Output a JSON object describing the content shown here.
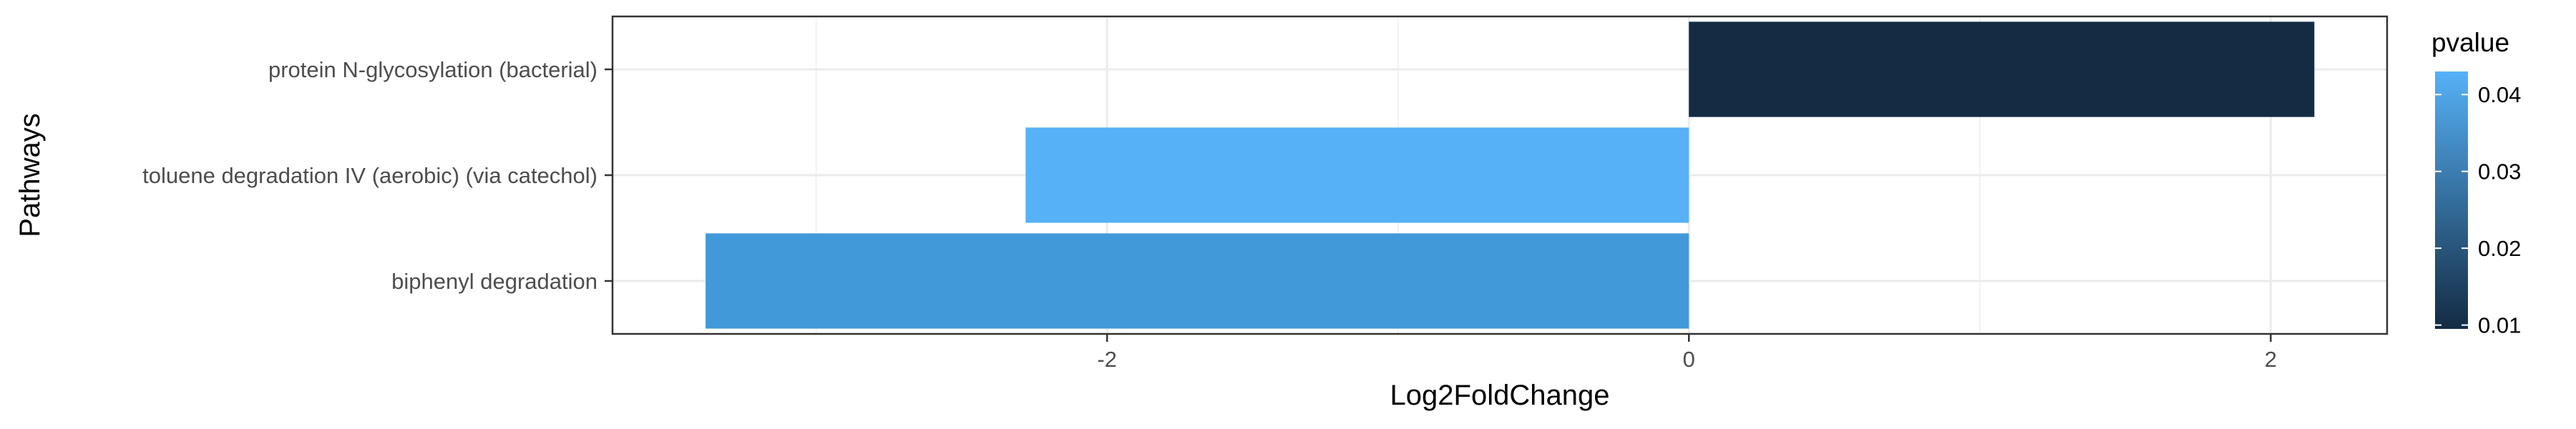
{
  "chart_data": {
    "type": "bar",
    "orientation": "horizontal",
    "xlabel": "Log2FoldChange",
    "ylabel": "Pathways",
    "xlim": [
      -3.7,
      2.4
    ],
    "x_ticks": [
      {
        "value": -2,
        "label": "-2"
      },
      {
        "value": 0,
        "label": "0"
      },
      {
        "value": 2,
        "label": "2"
      }
    ],
    "x_minor_ticks": [
      -3,
      -1,
      1
    ],
    "grid": true,
    "categories": [
      "protein N-glycosylation (bacterial)",
      "toluene degradation IV (aerobic) (via catechol)",
      "biphenyl degradation"
    ],
    "values": [
      2.15,
      -2.28,
      -3.38
    ],
    "pvalues": [
      0.0095,
      0.043,
      0.034
    ],
    "bar_colors": [
      "#132B43",
      "#56B1F7",
      "#4299D9"
    ],
    "legend": {
      "title": "pvalue",
      "position": "right",
      "type": "colorbar",
      "low_color": "#132B43",
      "high_color": "#56B1F7",
      "range": [
        0.0095,
        0.043
      ],
      "ticks": [
        {
          "value": 0.01,
          "label": "0.01"
        },
        {
          "value": 0.02,
          "label": "0.02"
        },
        {
          "value": 0.03,
          "label": "0.03"
        },
        {
          "value": 0.04,
          "label": "0.04"
        }
      ]
    }
  }
}
